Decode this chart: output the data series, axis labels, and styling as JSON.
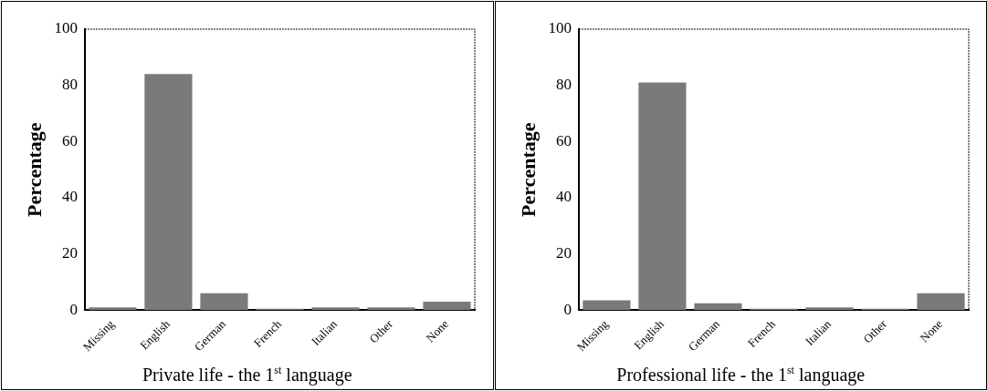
{
  "chart_data": [
    {
      "type": "bar",
      "title": "Private life - the 1$^{st}$ language",
      "ylabel": "Percentage",
      "categories": [
        "Missing",
        "English",
        "German",
        "French",
        "Italian",
        "Other",
        "None"
      ],
      "values": [
        1,
        84,
        6,
        0.5,
        1,
        1,
        3
      ],
      "color": "#7a7a7a",
      "ylim": [
        0,
        100
      ],
      "yticks": [
        0,
        20,
        40,
        60,
        80,
        100
      ],
      "grid": false,
      "legend": false
    },
    {
      "type": "bar",
      "title": "Professional life - the 1$^{st}$ language",
      "ylabel": "Percentage",
      "categories": [
        "Missing",
        "English",
        "German",
        "French",
        "Italian",
        "Other",
        "None"
      ],
      "values": [
        3.5,
        81,
        2.5,
        0.5,
        1,
        0.5,
        6
      ],
      "color": "#7a7a7a",
      "ylim": [
        0,
        100
      ],
      "yticks": [
        0,
        20,
        40,
        60,
        80,
        100
      ],
      "grid": false,
      "legend": false
    }
  ]
}
